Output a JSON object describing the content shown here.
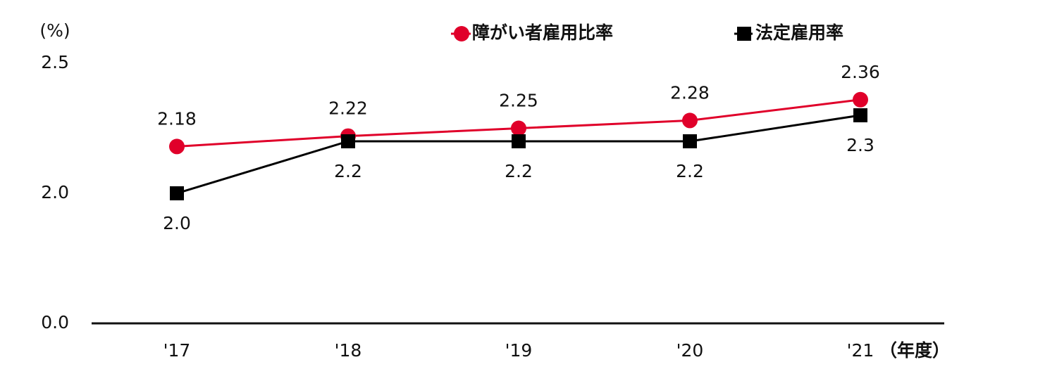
{
  "chart_data": {
    "type": "line",
    "y_label": "(%)",
    "x_label": "（年度）",
    "categories": [
      "'17",
      "'18",
      "'19",
      "'20",
      "'21"
    ],
    "series": [
      {
        "name": "障がい者雇用比率",
        "color": "#e0002a",
        "marker": "circle",
        "values": [
          2.18,
          2.22,
          2.25,
          2.28,
          2.36
        ]
      },
      {
        "name": "法定雇用率",
        "color": "#000000",
        "marker": "square",
        "values": [
          2.0,
          2.2,
          2.2,
          2.2,
          2.3
        ],
        "value_labels": [
          "2.0",
          "2.2",
          "2.2",
          "2.2",
          "2.3"
        ]
      }
    ],
    "ylim": [
      0,
      2.5
    ],
    "yticks": [
      {
        "value": 0,
        "label": "0.0"
      },
      {
        "value": 2.0,
        "label": "2.0"
      },
      {
        "value": 2.5,
        "label": "2.5"
      }
    ],
    "grid": false
  }
}
